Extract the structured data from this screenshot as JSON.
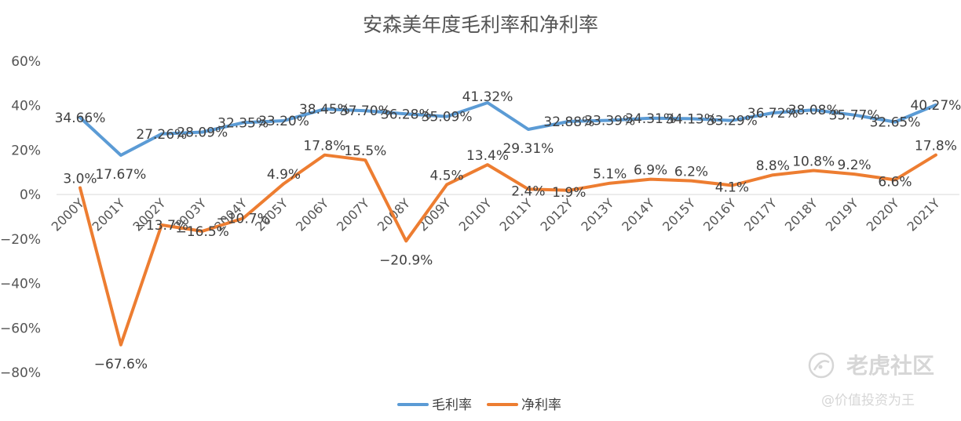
{
  "chart_data": {
    "type": "line",
    "title": "安森美年度毛利率和净利率",
    "categories": [
      "2000Y",
      "2001Y",
      "2002Y",
      "2003Y",
      "2004Y",
      "2005Y",
      "2006Y",
      "2007Y",
      "2008Y",
      "2009Y",
      "2010Y",
      "2011Y",
      "2012Y",
      "2013Y",
      "2014Y",
      "2015Y",
      "2016Y",
      "2017Y",
      "2018Y",
      "2019Y",
      "2020Y",
      "2021Y"
    ],
    "series": [
      {
        "name": "毛利率",
        "color": "#5b9bd5",
        "values": [
          34.66,
          17.67,
          27.26,
          28.09,
          32.35,
          33.2,
          38.45,
          37.7,
          36.28,
          35.09,
          41.32,
          29.31,
          32.88,
          33.39,
          34.31,
          34.13,
          33.29,
          36.72,
          38.08,
          35.77,
          32.65,
          40.27
        ],
        "labels": [
          "34.66%",
          "17.67%",
          "27.26%",
          "28.09%",
          "32.35%",
          "33.20%",
          "38.45%",
          "37.70%",
          "36.28%",
          "35.09%",
          "41.32%",
          "29.31%",
          "32.88%",
          "33.39%",
          "34.31%",
          "34.13%",
          "33.29%",
          "36.72%",
          "38.08%",
          "35.77%",
          "32.65%",
          "40.27%"
        ]
      },
      {
        "name": "净利率",
        "color": "#ed7d31",
        "values": [
          3.0,
          -67.6,
          -13.7,
          -16.5,
          -10.7,
          4.9,
          17.8,
          15.5,
          -20.9,
          4.5,
          13.4,
          2.4,
          1.9,
          5.1,
          6.9,
          6.2,
          4.1,
          8.8,
          10.8,
          9.2,
          6.6,
          17.8
        ],
        "labels": [
          "3.0%",
          "−67.6%",
          "−13.7%",
          "−16.5%",
          "−10.7%",
          "4.9%",
          "17.8%",
          "15.5%",
          "−20.9%",
          "4.5%",
          "13.4%",
          "2.4%",
          "1.9%",
          "5.1%",
          "6.9%",
          "6.2%",
          "4.1%",
          "8.8%",
          "10.8%",
          "9.2%",
          "6.6%",
          "17.8%"
        ]
      }
    ],
    "yticks": [
      "60%",
      "40%",
      "20%",
      "0%",
      "−20%",
      "−40%",
      "−60%",
      "−80%"
    ],
    "ytick_values": [
      60,
      40,
      20,
      0,
      -20,
      -40,
      -60,
      -80
    ],
    "ylim": [
      -80,
      60
    ],
    "grid": false,
    "legend_position": "bottom"
  },
  "watermark": {
    "logo_text": "老虎社区",
    "sub_text": "@价值投资为王"
  }
}
